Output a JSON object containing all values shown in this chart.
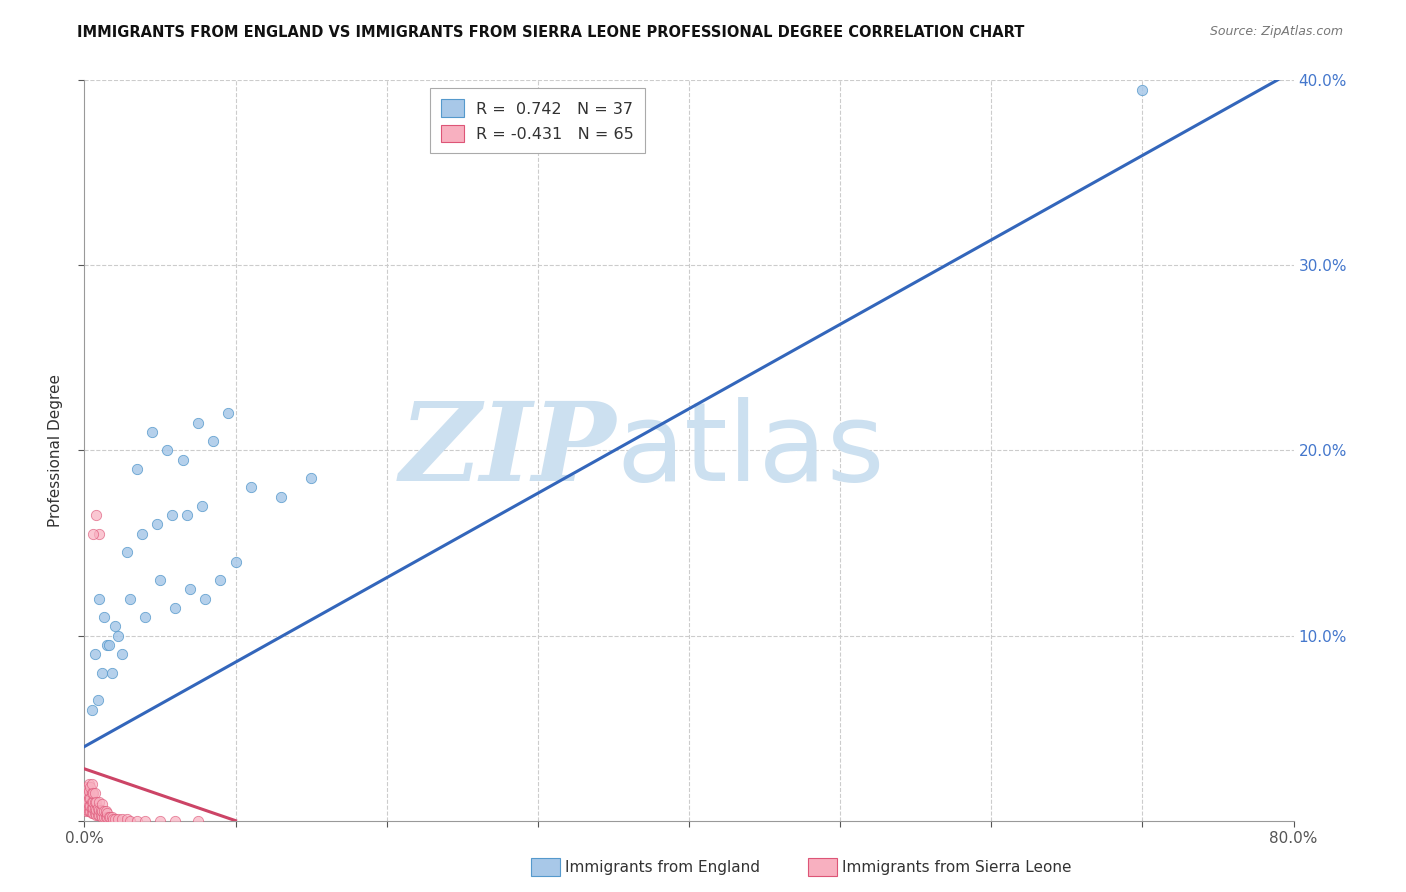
{
  "title": "IMMIGRANTS FROM ENGLAND VS IMMIGRANTS FROM SIERRA LEONE PROFESSIONAL DEGREE CORRELATION CHART",
  "source": "Source: ZipAtlas.com",
  "ylabel": "Professional Degree",
  "xlim": [
    0.0,
    0.8
  ],
  "ylim": [
    0.0,
    0.4
  ],
  "xticks": [
    0.0,
    0.1,
    0.2,
    0.3,
    0.4,
    0.5,
    0.6,
    0.7,
    0.8
  ],
  "yticks": [
    0.0,
    0.1,
    0.2,
    0.3,
    0.4
  ],
  "england_color": "#a8c8e8",
  "england_edge": "#5599cc",
  "sierraleone_color": "#f8b0c0",
  "sierraleone_edge": "#dd5577",
  "england_line_color": "#3366bb",
  "sierraleone_line_color": "#cc4466",
  "watermark_color": "#cce0f0",
  "england_line": {
    "x0": 0.0,
    "y0": 0.04,
    "x1": 0.8,
    "y1": 0.405
  },
  "sierraleone_line": {
    "x0": 0.0,
    "y0": 0.028,
    "x1": 0.1,
    "y1": 0.0
  },
  "england_scatter_x": [
    0.005,
    0.007,
    0.009,
    0.012,
    0.015,
    0.018,
    0.022,
    0.025,
    0.01,
    0.013,
    0.016,
    0.02,
    0.03,
    0.04,
    0.05,
    0.06,
    0.07,
    0.08,
    0.09,
    0.1,
    0.035,
    0.045,
    0.055,
    0.065,
    0.075,
    0.085,
    0.095,
    0.11,
    0.13,
    0.15,
    0.028,
    0.038,
    0.048,
    0.058,
    0.068,
    0.078,
    0.7
  ],
  "england_scatter_y": [
    0.06,
    0.09,
    0.065,
    0.08,
    0.095,
    0.08,
    0.1,
    0.09,
    0.12,
    0.11,
    0.095,
    0.105,
    0.12,
    0.11,
    0.13,
    0.115,
    0.125,
    0.12,
    0.13,
    0.14,
    0.19,
    0.21,
    0.2,
    0.195,
    0.215,
    0.205,
    0.22,
    0.18,
    0.175,
    0.185,
    0.145,
    0.155,
    0.16,
    0.165,
    0.165,
    0.17,
    0.395
  ],
  "sierraleone_dense_x": [
    0.001,
    0.001,
    0.001,
    0.002,
    0.002,
    0.002,
    0.002,
    0.003,
    0.003,
    0.003,
    0.003,
    0.003,
    0.004,
    0.004,
    0.004,
    0.004,
    0.005,
    0.005,
    0.005,
    0.005,
    0.005,
    0.006,
    0.006,
    0.006,
    0.006,
    0.007,
    0.007,
    0.007,
    0.007,
    0.008,
    0.008,
    0.008,
    0.009,
    0.009,
    0.01,
    0.01,
    0.01,
    0.011,
    0.011,
    0.012,
    0.012,
    0.012,
    0.013,
    0.013,
    0.014,
    0.014,
    0.015,
    0.015,
    0.016,
    0.017,
    0.018,
    0.019,
    0.02,
    0.022,
    0.025,
    0.028,
    0.03,
    0.035,
    0.04,
    0.05,
    0.06,
    0.075,
    0.01,
    0.008,
    0.006
  ],
  "sierraleone_dense_y": [
    0.005,
    0.008,
    0.012,
    0.006,
    0.01,
    0.015,
    0.018,
    0.005,
    0.008,
    0.012,
    0.016,
    0.02,
    0.005,
    0.008,
    0.012,
    0.018,
    0.004,
    0.007,
    0.01,
    0.015,
    0.02,
    0.004,
    0.007,
    0.01,
    0.015,
    0.004,
    0.007,
    0.01,
    0.015,
    0.003,
    0.006,
    0.01,
    0.003,
    0.007,
    0.003,
    0.006,
    0.01,
    0.003,
    0.006,
    0.002,
    0.005,
    0.009,
    0.002,
    0.005,
    0.002,
    0.005,
    0.002,
    0.004,
    0.002,
    0.002,
    0.002,
    0.001,
    0.001,
    0.001,
    0.001,
    0.001,
    0.0,
    0.0,
    0.0,
    0.0,
    0.0,
    0.0,
    0.155,
    0.165,
    0.155
  ]
}
